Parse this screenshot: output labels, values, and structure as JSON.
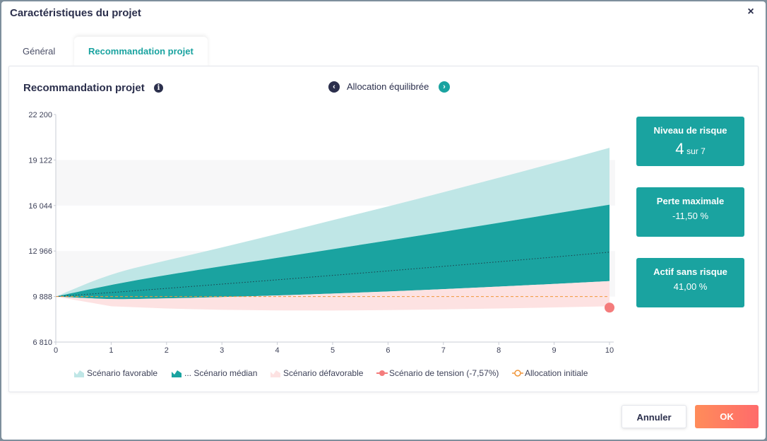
{
  "modal": {
    "title": "Caractéristiques du projet",
    "close_label": "×"
  },
  "tabs": [
    {
      "label": "Général",
      "active": false
    },
    {
      "label": "Recommandation projet",
      "active": true
    }
  ],
  "panel": {
    "title": "Recommandation projet",
    "info_icon": "info-icon",
    "allocation_label": "Allocation équilibrée",
    "prev_icon": "chevron-left-icon",
    "next_icon": "chevron-right-icon"
  },
  "kpis": [
    {
      "label": "Niveau de risque",
      "value": "4",
      "suffix": "sur 7"
    },
    {
      "label": "Perte maximale",
      "value": "-11,50 %"
    },
    {
      "label": "Actif sans risque",
      "value": "41,00 %"
    }
  ],
  "buttons": {
    "cancel": "Annuler",
    "ok": "OK"
  },
  "colors": {
    "teal": "#1aa3a0",
    "light_teal": "#bfe6e6",
    "pink": "#fde2e2",
    "tension": "#f47c7c",
    "initial": "#f0963a",
    "navy": "#2b2f4c"
  },
  "chart_data": {
    "type": "area",
    "x": [
      0,
      1,
      2,
      3,
      4,
      5,
      6,
      7,
      8,
      9,
      10
    ],
    "ylim": [
      6810,
      22200
    ],
    "yticks": [
      6810,
      9888,
      12966,
      16044,
      19122,
      22200
    ],
    "ytick_labels": [
      "6 810",
      "9 888",
      "12 966",
      "16 044",
      "19 122",
      "22 200"
    ],
    "xtick_labels": [
      "0",
      "1",
      "2",
      "3",
      "4",
      "5",
      "6",
      "7",
      "8",
      "9",
      "10"
    ],
    "series": [
      {
        "name": "Scénario favorable",
        "upper": [
          9888,
          11450,
          12330,
          13200,
          14120,
          15050,
          15980,
          16940,
          17920,
          18920,
          19950
        ],
        "lower": [
          9888,
          10690,
          11350,
          11940,
          12500,
          13090,
          13680,
          14270,
          14870,
          15490,
          16100
        ]
      },
      {
        "name": "... Scénario médian",
        "upper": [
          9888,
          10690,
          11350,
          11940,
          12500,
          13090,
          13680,
          14270,
          14870,
          15490,
          16100
        ],
        "lower": [
          9888,
          9690,
          9760,
          9850,
          9960,
          10090,
          10230,
          10390,
          10560,
          10740,
          10930
        ],
        "median": [
          9888,
          10160,
          10440,
          10730,
          11020,
          11320,
          11620,
          11930,
          12240,
          12560,
          12890
        ]
      },
      {
        "name": "Scénario défavorable",
        "upper": [
          9888,
          9690,
          9760,
          9850,
          9960,
          10090,
          10230,
          10390,
          10560,
          10740,
          10930
        ],
        "lower": [
          9888,
          9230,
          9080,
          8990,
          8950,
          8940,
          8970,
          9020,
          9080,
          9150,
          9230
        ]
      },
      {
        "name": "Scénario de tension (-7,57%)",
        "points": [
          [
            10,
            9140
          ]
        ]
      },
      {
        "name": "Allocation initiale",
        "values": [
          9888,
          9888,
          9888,
          9888,
          9888,
          9888,
          9888,
          9888,
          9888,
          9888,
          9888
        ]
      }
    ],
    "grid": "alternating horizontal bands",
    "legend_position": "bottom"
  }
}
